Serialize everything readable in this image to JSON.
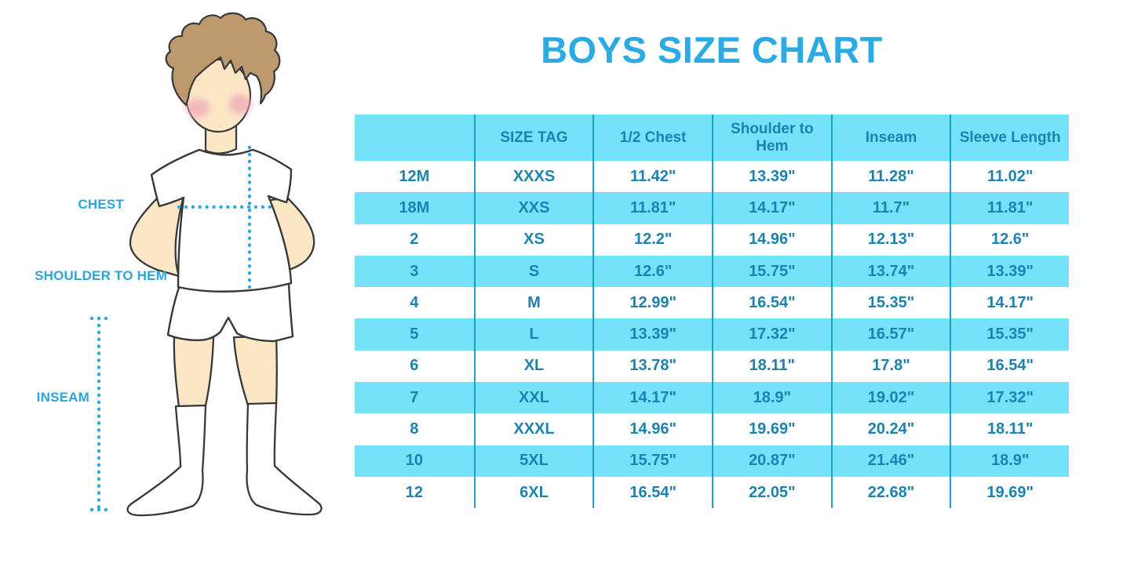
{
  "title": "BOYS SIZE CHART",
  "figure": {
    "description": "illustration of a boy in white t-shirt, shorts and knee socks with dotted measurement guides",
    "labels": {
      "chest": "CHEST",
      "shoulder_to_hem": "SHOULDER TO HEM",
      "inseam": "INSEAM"
    }
  },
  "chart_data": {
    "type": "table",
    "title": "BOYS SIZE CHART",
    "units": "inches",
    "columns": [
      "",
      "SIZE TAG",
      "1/2 Chest",
      "Shoulder to Hem",
      "Inseam",
      "Sleeve Length"
    ],
    "rows": [
      [
        "12M",
        "XXXS",
        "11.42\"",
        "13.39\"",
        "11.28\"",
        "11.02\""
      ],
      [
        "18M",
        "XXS",
        "11.81\"",
        "14.17\"",
        "11.7\"",
        "11.81\""
      ],
      [
        "2",
        "XS",
        "12.2\"",
        "14.96\"",
        "12.13\"",
        "12.6\""
      ],
      [
        "3",
        "S",
        "12.6\"",
        "15.75\"",
        "13.74\"",
        "13.39\""
      ],
      [
        "4",
        "M",
        "12.99\"",
        "16.54\"",
        "15.35\"",
        "14.17\""
      ],
      [
        "5",
        "L",
        "13.39\"",
        "17.32\"",
        "16.57\"",
        "15.35\""
      ],
      [
        "6",
        "XL",
        "13.78\"",
        "18.11\"",
        "17.8\"",
        "16.54\""
      ],
      [
        "7",
        "XXL",
        "14.17\"",
        "18.9\"",
        "19.02\"",
        "17.32\""
      ],
      [
        "8",
        "XXXL",
        "14.96\"",
        "19.69\"",
        "20.24\"",
        "18.11\""
      ],
      [
        "10",
        "5XL",
        "15.75\"",
        "20.87\"",
        "21.46\"",
        "18.9\""
      ],
      [
        "12",
        "6XL",
        "16.54\"",
        "22.05\"",
        "22.68\"",
        "19.69\""
      ]
    ],
    "layout": {
      "stripe_pattern": "header cyan, then rows alternate white/cyan starting white",
      "grid": "vertical column dividers only, no outer border"
    }
  },
  "colors": {
    "accent_blue": "#2AABE3",
    "label_blue": "#2AA4DC",
    "table_stripe": "#74E3FA",
    "table_divider": "#1BA0CC",
    "table_text": "#1B82B2",
    "dotted_line": "#29ABE2",
    "skin": "#FBE6C6",
    "hair": "#BD9A6E",
    "blush": "#F0A8B8",
    "outline": "#383838",
    "garment_white": "#FFFFFF"
  }
}
